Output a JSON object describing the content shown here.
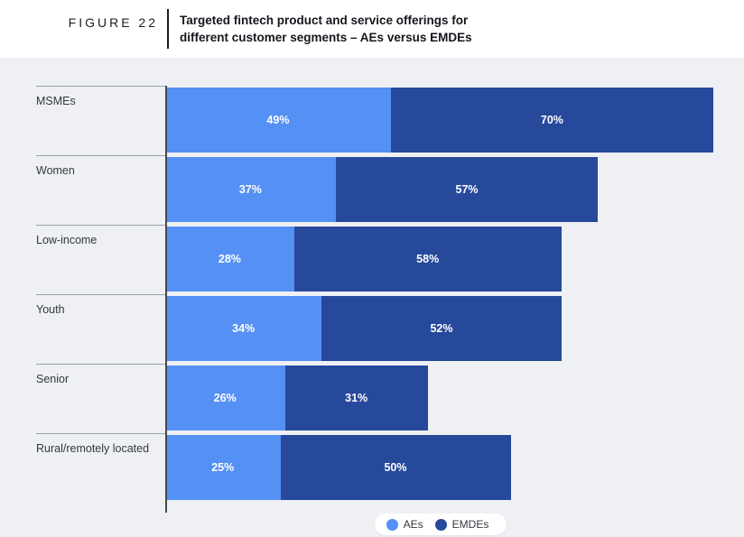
{
  "figure": {
    "label": "FIGURE 22",
    "title_lines": [
      "Targeted fintech product and service offerings for",
      "different customer segments – AEs versus EMDEs"
    ]
  },
  "chart_data": {
    "type": "bar",
    "orientation": "horizontal",
    "stacked": true,
    "grid": false,
    "legend_position": "bottom",
    "value_suffix": "%",
    "categories": [
      "MSMEs",
      "Women",
      "Low-income",
      "Youth",
      "Senior",
      "Rural/remotely located"
    ],
    "series": [
      {
        "name": "AEs",
        "color": "#5590f4",
        "values": [
          49,
          37,
          28,
          34,
          26,
          25
        ]
      },
      {
        "name": "EMDEs",
        "color": "#27499b",
        "values": [
          70,
          57,
          58,
          52,
          31,
          50
        ]
      }
    ],
    "value_axis_unit": "percent"
  },
  "colors": {
    "chart_background": "#eef0f4",
    "header_background": "#ffffff",
    "row_line": "#9aa1ab",
    "axis_line": "#45484e",
    "bar_value_text": "#ffffff",
    "category_text": "#33373d"
  }
}
